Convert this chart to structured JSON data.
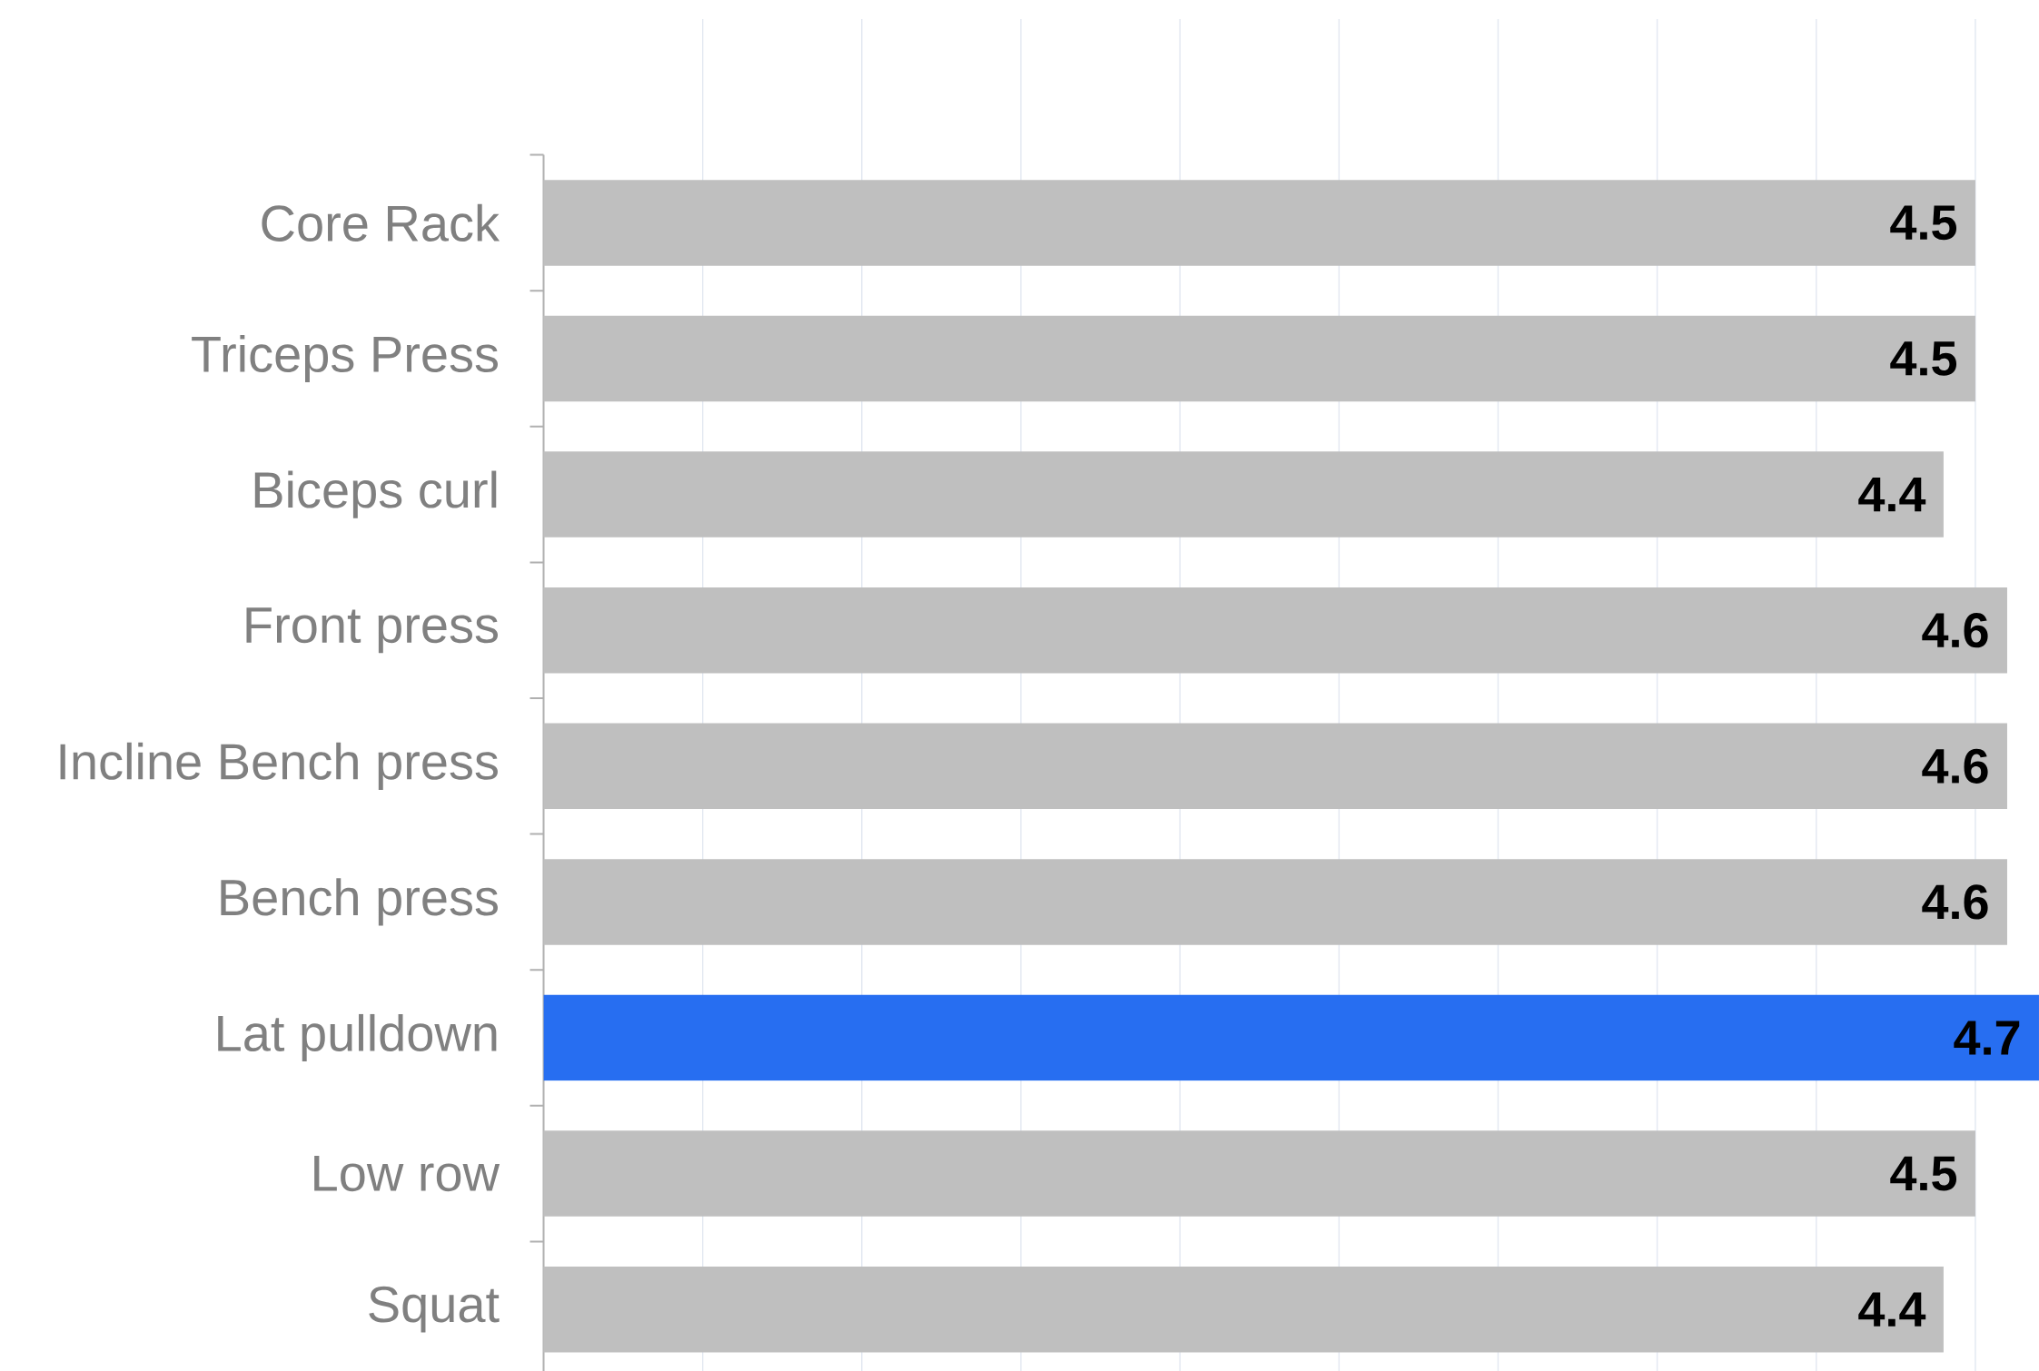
{
  "chart_data": {
    "type": "bar",
    "orientation": "horizontal",
    "categories": [
      "Core Rack",
      "Triceps Press",
      "Biceps curl",
      "Front press",
      "Incline Bench press",
      "Bench press",
      "Lat pulldown",
      "Low row",
      "Squat"
    ],
    "values": [
      4.5,
      4.5,
      4.4,
      4.6,
      4.6,
      4.6,
      4.7,
      4.5,
      4.4
    ],
    "colors": [
      "#bfbfbf",
      "#bfbfbf",
      "#bfbfbf",
      "#bfbfbf",
      "#bfbfbf",
      "#bfbfbf",
      "#276ef1",
      "#bfbfbf",
      "#bfbfbf"
    ],
    "data_labels": true,
    "xlim": [
      0,
      4.7
    ],
    "xticks": [
      {
        "value": 0.5,
        "label": null
      },
      {
        "value": 1,
        "label": null
      },
      {
        "value": 1.5,
        "label": null
      },
      {
        "value": 2,
        "label": null
      },
      {
        "value": 2.5,
        "label": null
      },
      {
        "value": 3,
        "label": null
      },
      {
        "value": 3.5,
        "label": null
      },
      {
        "value": 4,
        "label": null
      },
      {
        "value": 4.5,
        "label": null
      }
    ],
    "grid": "x",
    "tick_labels": "y"
  }
}
